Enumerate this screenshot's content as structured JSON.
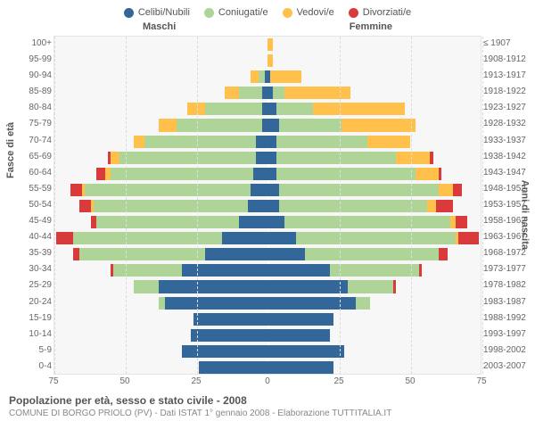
{
  "legend": [
    {
      "label": "Celibi/Nubili",
      "color": "#336699"
    },
    {
      "label": "Coniugati/e",
      "color": "#aed498"
    },
    {
      "label": "Vedovi/e",
      "color": "#ffc04c"
    },
    {
      "label": "Divorziati/e",
      "color": "#d93a3a"
    }
  ],
  "headers": {
    "male": "Maschi",
    "female": "Femmine"
  },
  "axis_titles": {
    "left": "Fasce di età",
    "right": "Anni di nascita"
  },
  "xaxis": {
    "max": 75,
    "ticks": [
      75,
      50,
      25,
      0,
      25,
      50,
      75
    ]
  },
  "footer": {
    "title": "Popolazione per età, sesso e stato civile - 2008",
    "subtitle": "COMUNE DI BORGO PRIOLO (PV) - Dati ISTAT 1° gennaio 2008 - Elaborazione TUTTITALIA.IT"
  },
  "colors": {
    "celibi": "#336699",
    "coniugati": "#aed498",
    "vedovi": "#ffc04c",
    "divorziati": "#d93a3a",
    "plot_bg": "#f7f7f7"
  },
  "rows": [
    {
      "age": "100+",
      "birth": "≤ 1907",
      "m": {
        "c": 0,
        "o": 0,
        "v": 0,
        "d": 0
      },
      "f": {
        "c": 0,
        "o": 0,
        "v": 2,
        "d": 0
      }
    },
    {
      "age": "95-99",
      "birth": "1908-1912",
      "m": {
        "c": 0,
        "o": 0,
        "v": 0,
        "d": 0
      },
      "f": {
        "c": 0,
        "o": 0,
        "v": 2,
        "d": 0
      }
    },
    {
      "age": "90-94",
      "birth": "1913-1917",
      "m": {
        "c": 1,
        "o": 2,
        "v": 3,
        "d": 0
      },
      "f": {
        "c": 1,
        "o": 0,
        "v": 11,
        "d": 0
      }
    },
    {
      "age": "85-89",
      "birth": "1918-1922",
      "m": {
        "c": 2,
        "o": 8,
        "v": 5,
        "d": 0
      },
      "f": {
        "c": 2,
        "o": 4,
        "v": 23,
        "d": 0
      }
    },
    {
      "age": "80-84",
      "birth": "1923-1927",
      "m": {
        "c": 2,
        "o": 20,
        "v": 6,
        "d": 0
      },
      "f": {
        "c": 3,
        "o": 13,
        "v": 32,
        "d": 0
      }
    },
    {
      "age": "75-79",
      "birth": "1928-1932",
      "m": {
        "c": 2,
        "o": 30,
        "v": 6,
        "d": 0
      },
      "f": {
        "c": 4,
        "o": 22,
        "v": 26,
        "d": 0
      }
    },
    {
      "age": "70-74",
      "birth": "1933-1937",
      "m": {
        "c": 4,
        "o": 39,
        "v": 4,
        "d": 0
      },
      "f": {
        "c": 3,
        "o": 32,
        "v": 15,
        "d": 0
      }
    },
    {
      "age": "65-69",
      "birth": "1938-1942",
      "m": {
        "c": 4,
        "o": 48,
        "v": 3,
        "d": 1
      },
      "f": {
        "c": 3,
        "o": 42,
        "v": 12,
        "d": 1
      }
    },
    {
      "age": "60-64",
      "birth": "1943-1947",
      "m": {
        "c": 5,
        "o": 50,
        "v": 2,
        "d": 3
      },
      "f": {
        "c": 3,
        "o": 49,
        "v": 8,
        "d": 1
      }
    },
    {
      "age": "55-59",
      "birth": "1948-1952",
      "m": {
        "c": 6,
        "o": 58,
        "v": 1,
        "d": 4
      },
      "f": {
        "c": 4,
        "o": 56,
        "v": 5,
        "d": 3
      }
    },
    {
      "age": "50-54",
      "birth": "1953-1957",
      "m": {
        "c": 7,
        "o": 54,
        "v": 1,
        "d": 4
      },
      "f": {
        "c": 4,
        "o": 52,
        "v": 3,
        "d": 6
      }
    },
    {
      "age": "45-49",
      "birth": "1958-1962",
      "m": {
        "c": 10,
        "o": 50,
        "v": 0,
        "d": 2
      },
      "f": {
        "c": 6,
        "o": 58,
        "v": 2,
        "d": 4
      }
    },
    {
      "age": "40-44",
      "birth": "1963-1967",
      "m": {
        "c": 16,
        "o": 52,
        "v": 0,
        "d": 6
      },
      "f": {
        "c": 10,
        "o": 56,
        "v": 1,
        "d": 7
      }
    },
    {
      "age": "35-39",
      "birth": "1968-1972",
      "m": {
        "c": 22,
        "o": 44,
        "v": 0,
        "d": 2
      },
      "f": {
        "c": 13,
        "o": 47,
        "v": 0,
        "d": 3
      }
    },
    {
      "age": "30-34",
      "birth": "1973-1977",
      "m": {
        "c": 30,
        "o": 24,
        "v": 0,
        "d": 1
      },
      "f": {
        "c": 22,
        "o": 31,
        "v": 0,
        "d": 1
      }
    },
    {
      "age": "25-29",
      "birth": "1978-1982",
      "m": {
        "c": 38,
        "o": 9,
        "v": 0,
        "d": 0
      },
      "f": {
        "c": 28,
        "o": 16,
        "v": 0,
        "d": 1
      }
    },
    {
      "age": "20-24",
      "birth": "1983-1987",
      "m": {
        "c": 36,
        "o": 2,
        "v": 0,
        "d": 0
      },
      "f": {
        "c": 31,
        "o": 5,
        "v": 0,
        "d": 0
      }
    },
    {
      "age": "15-19",
      "birth": "1988-1992",
      "m": {
        "c": 26,
        "o": 0,
        "v": 0,
        "d": 0
      },
      "f": {
        "c": 23,
        "o": 0,
        "v": 0,
        "d": 0
      }
    },
    {
      "age": "10-14",
      "birth": "1993-1997",
      "m": {
        "c": 27,
        "o": 0,
        "v": 0,
        "d": 0
      },
      "f": {
        "c": 22,
        "o": 0,
        "v": 0,
        "d": 0
      }
    },
    {
      "age": "5-9",
      "birth": "1998-2002",
      "m": {
        "c": 30,
        "o": 0,
        "v": 0,
        "d": 0
      },
      "f": {
        "c": 27,
        "o": 0,
        "v": 0,
        "d": 0
      }
    },
    {
      "age": "0-4",
      "birth": "2003-2007",
      "m": {
        "c": 24,
        "o": 0,
        "v": 0,
        "d": 0
      },
      "f": {
        "c": 23,
        "o": 0,
        "v": 0,
        "d": 0
      }
    }
  ]
}
